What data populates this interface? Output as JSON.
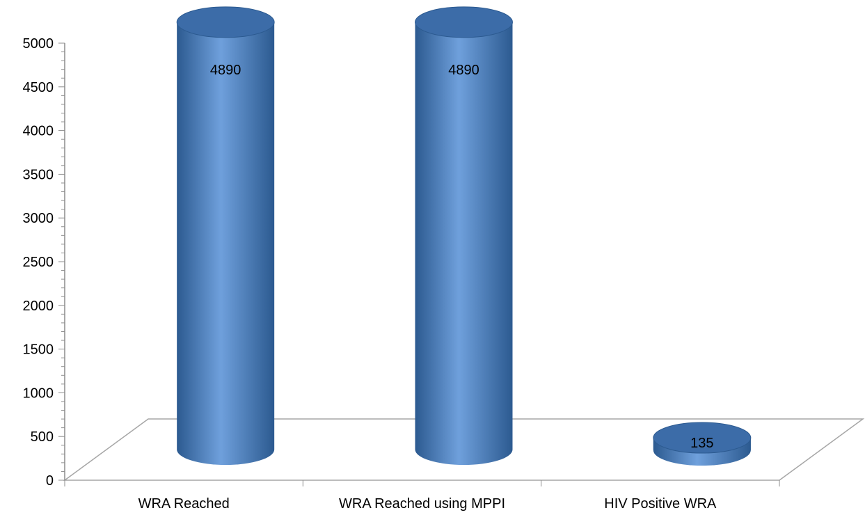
{
  "chart_data": {
    "type": "bar",
    "style": "3d-cylinder",
    "categories": [
      "WRA Reached",
      "WRA Reached using MPPI",
      "HIV Positive WRA"
    ],
    "values": [
      4890,
      4890,
      135
    ],
    "data_labels": [
      "4890",
      "4890",
      "135"
    ],
    "ylim": [
      0,
      5000
    ],
    "yticks": [
      0,
      500,
      1000,
      1500,
      2000,
      2500,
      3000,
      3500,
      4000,
      4500,
      5000
    ],
    "title": "",
    "xlabel": "",
    "ylabel": "",
    "grid": false,
    "legend": "none",
    "colors": {
      "bar": "#4f81bd",
      "bar_light": "#6fa0dc",
      "bar_dark": "#2c5a90",
      "top": "#3c6ca8",
      "axis": "#8c8c8c",
      "floor": "#a6a6a6"
    }
  }
}
